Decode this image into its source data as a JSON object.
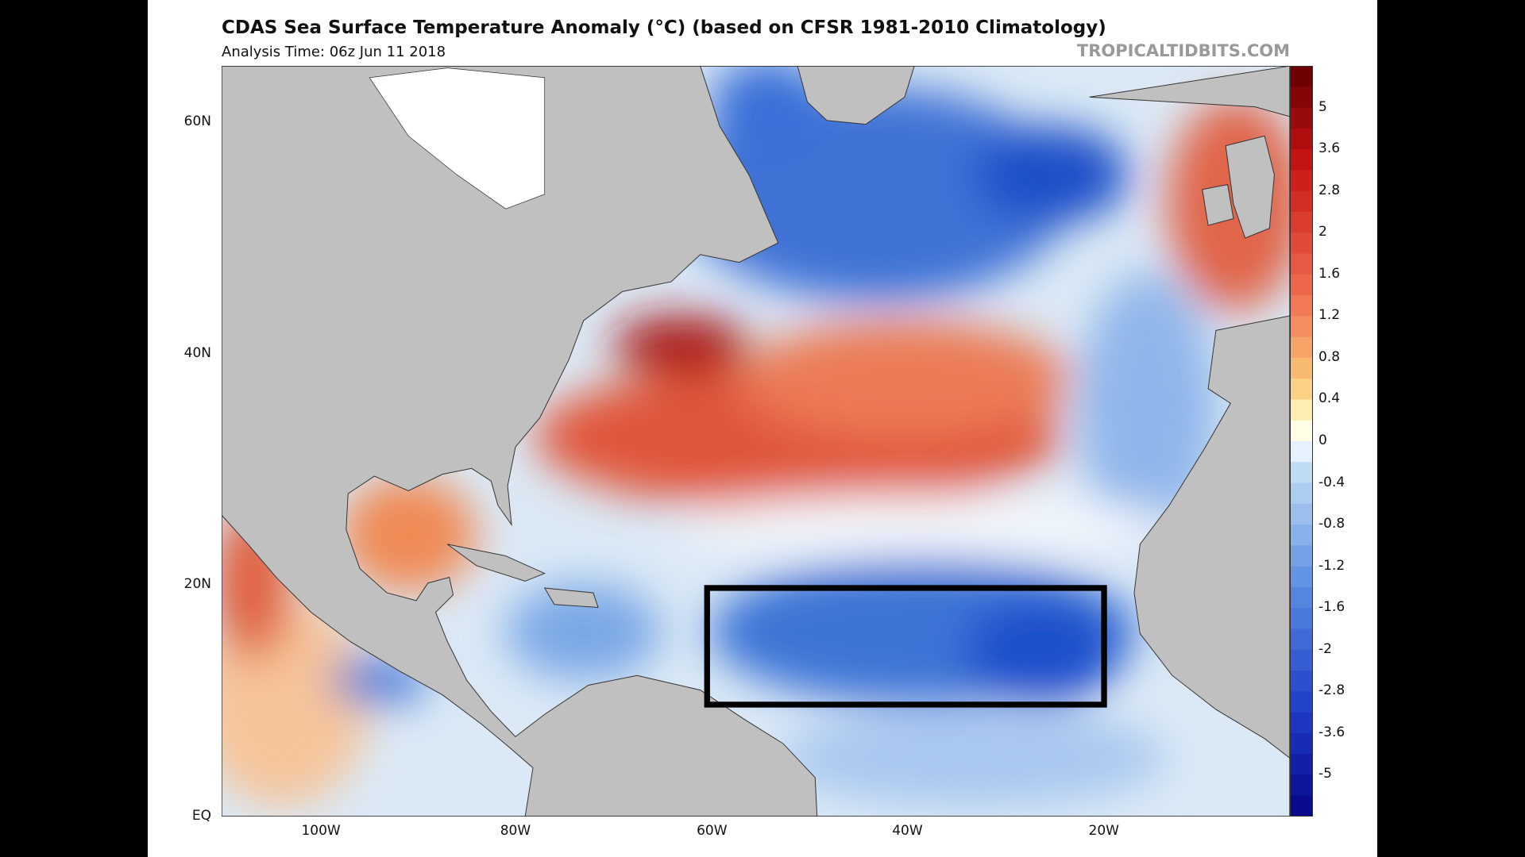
{
  "header": {
    "title": "CDAS Sea Surface Temperature Anomaly (°C) (based on CFSR 1981-2010 Climatology)",
    "subtitle": "Analysis Time: 06z Jun 11 2018",
    "source": "TROPICALTIDBITS.COM"
  },
  "map": {
    "lat_labels": [
      "60N",
      "40N",
      "20N",
      "EQ"
    ],
    "lon_labels": [
      "100W",
      "80W",
      "60W",
      "40W",
      "20W"
    ]
  },
  "colorbar": {
    "labels": [
      "5",
      "3.6",
      "2.8",
      "2",
      "1.6",
      "1.2",
      "0.8",
      "0.4",
      "0",
      "-0.4",
      "-0.8",
      "-1.2",
      "-1.6",
      "-2",
      "-2.8",
      "-3.6",
      "-5"
    ]
  }
}
